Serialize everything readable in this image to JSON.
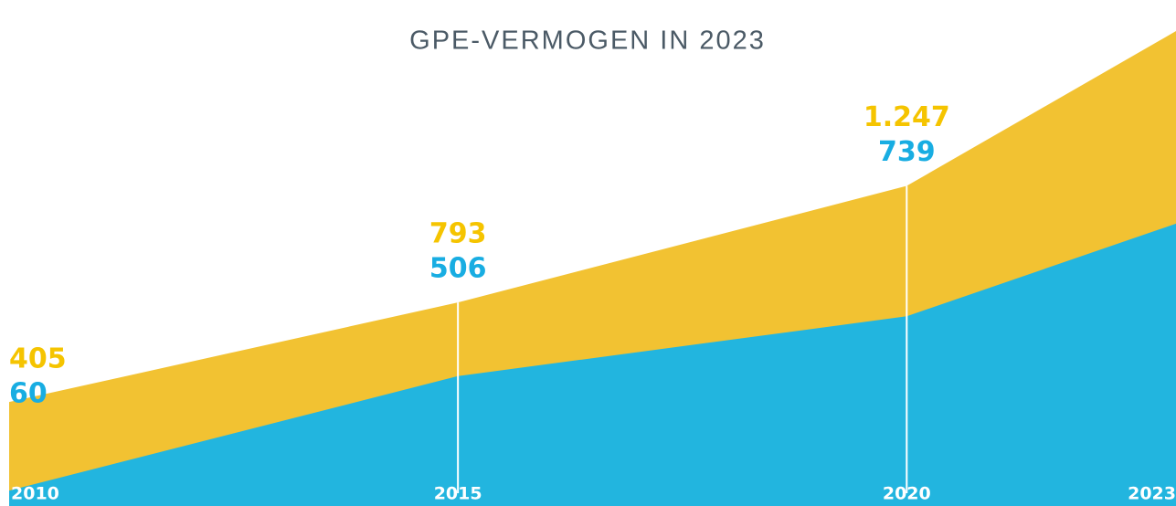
{
  "chart_data": {
    "type": "area",
    "subtitle": "GPE-VERMOGEN IN 2023",
    "x": [
      2010,
      2015,
      2020,
      2023
    ],
    "xlim": [
      2010,
      2023
    ],
    "xticks": [
      2010,
      2015,
      2020,
      2023
    ],
    "ylim": [
      0,
      1900
    ],
    "series": [
      {
        "color": "#f2c232",
        "label_color": "#f5c400",
        "values": [
          405,
          793,
          1247,
          1850
        ],
        "value_labels": [
          "405",
          "793",
          "1.247",
          null
        ]
      },
      {
        "color": "#22b5df",
        "label_color": "#18ade2",
        "values": [
          60,
          506,
          739,
          1100
        ]
      }
    ]
  }
}
